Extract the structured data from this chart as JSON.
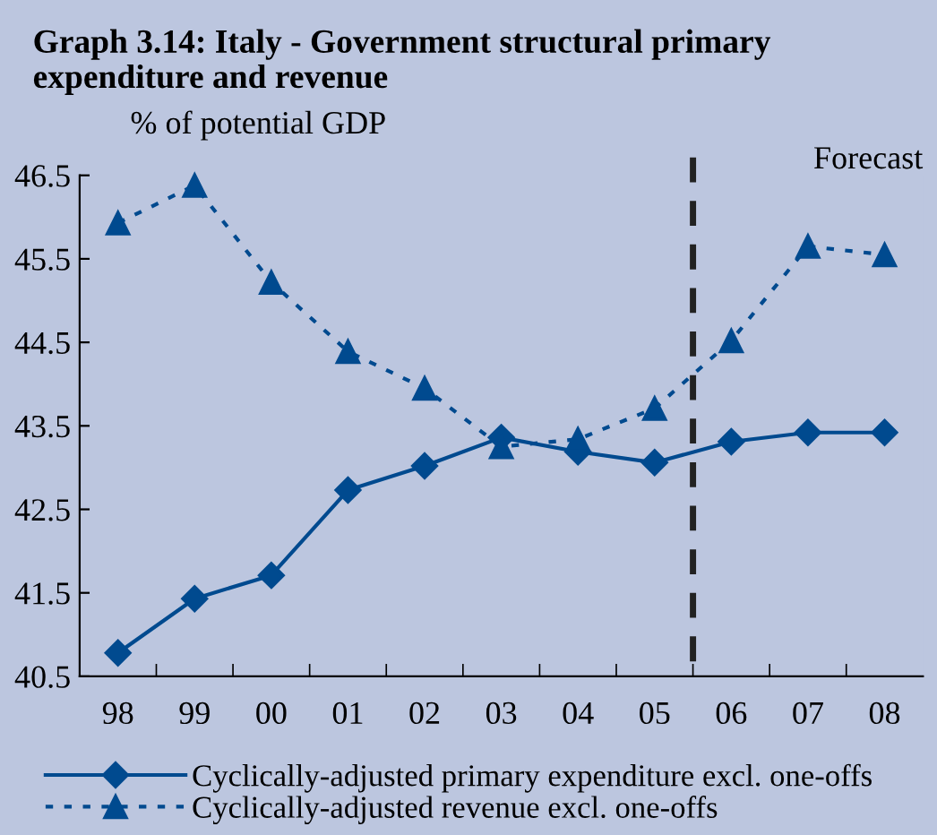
{
  "chart_data": {
    "type": "line",
    "title": "Graph 3.14: Italy - Government structural primary expenditure and revenue",
    "ylabel": "% of potential GDP",
    "categories": [
      "98",
      "99",
      "00",
      "01",
      "02",
      "03",
      "04",
      "05",
      "06",
      "07",
      "08"
    ],
    "series": [
      {
        "name": "Cyclically-adjusted primary expenditure excl. one-offs",
        "color": "#004a8f",
        "marker": "diamond",
        "line_style": "solid",
        "values": [
          40.78,
          41.43,
          41.71,
          42.73,
          43.02,
          43.36,
          43.19,
          43.06,
          43.31,
          43.42,
          43.42
        ]
      },
      {
        "name": "Cyclically-adjusted revenue excl. one-offs",
        "color": "#004a8f",
        "marker": "triangle",
        "line_style": "dotted",
        "values": [
          45.93,
          46.38,
          45.22,
          44.39,
          43.95,
          43.25,
          43.34,
          43.71,
          44.52,
          45.65,
          45.55
        ]
      }
    ],
    "ylim": [
      40.5,
      46.5
    ],
    "yticks": [
      40.5,
      41.5,
      42.5,
      43.5,
      44.5,
      45.5,
      46.5
    ],
    "annotations": [
      "Forecast"
    ],
    "grid": false,
    "legend": "bottom"
  }
}
